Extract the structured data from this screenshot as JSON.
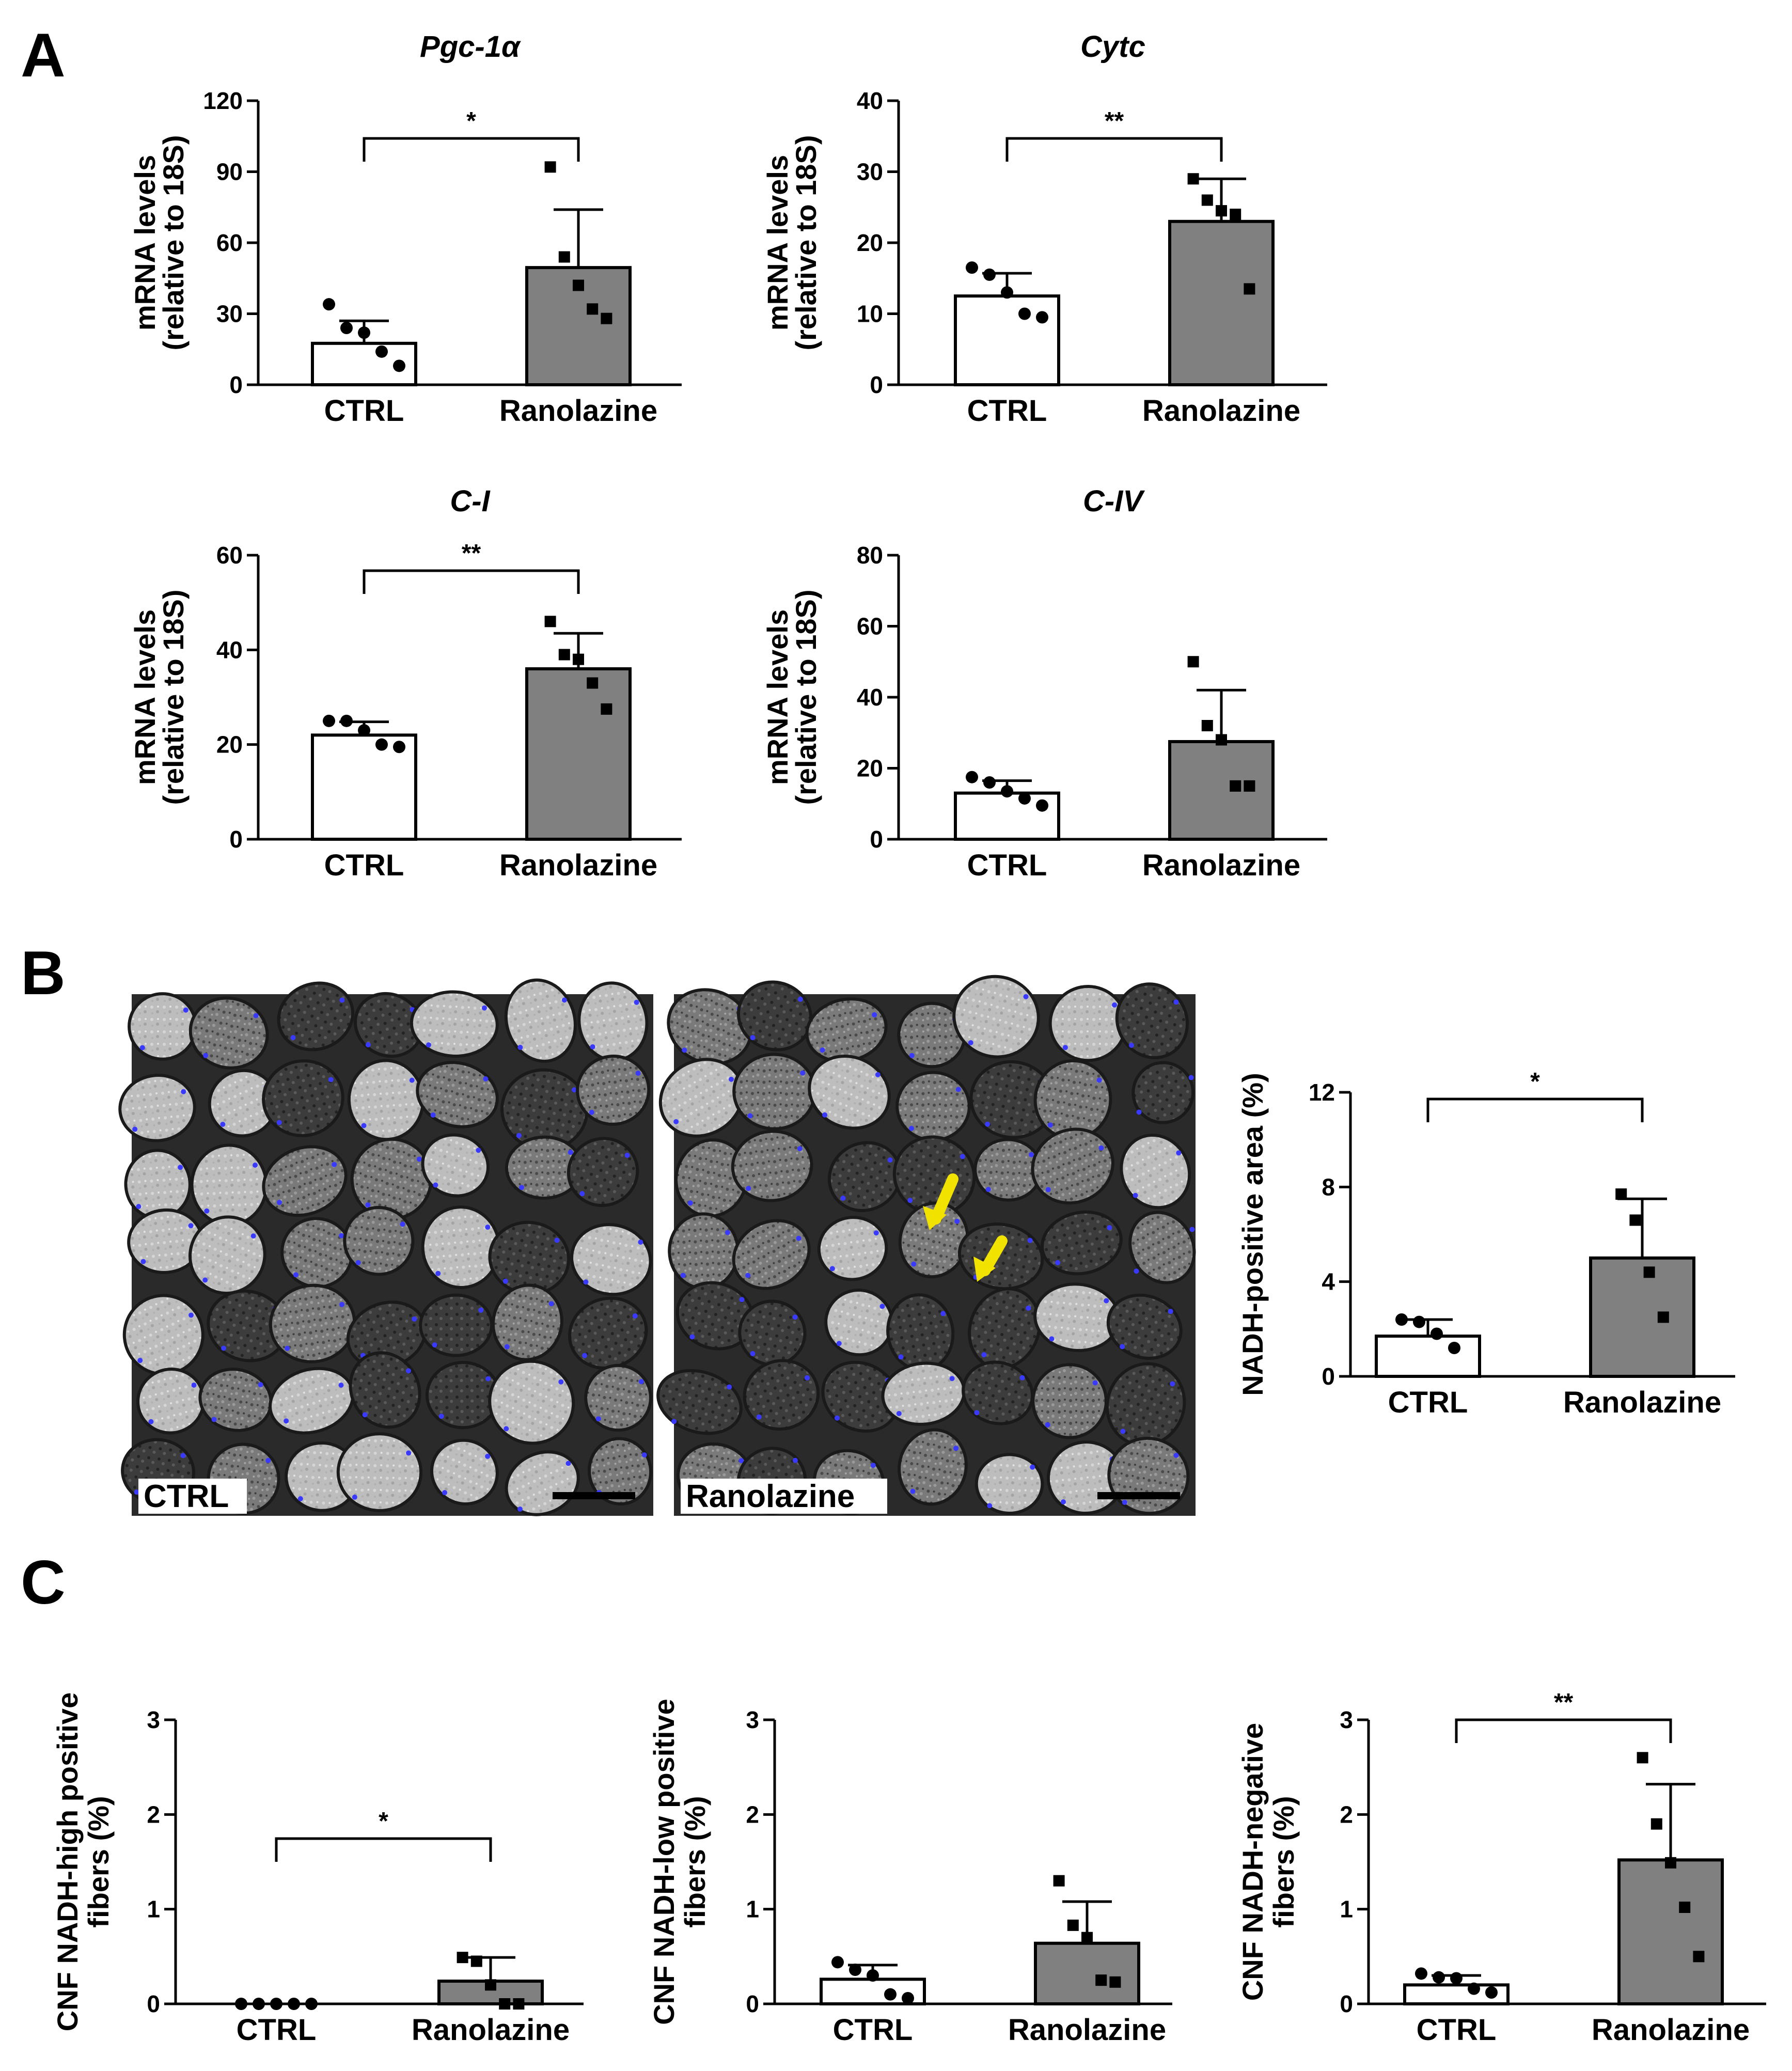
{
  "panel_labels": {
    "a": "A",
    "b": "B",
    "c": "C"
  },
  "colors": {
    "ctrl_bar": "#ffffff",
    "ranolazine_bar": "#808080",
    "axis": "#000000",
    "arrow": "#f2e200",
    "nuclei": "#3a3aff"
  },
  "micrographs": [
    {
      "label": "CTRL",
      "scale_bar": true,
      "arrows": 0
    },
    {
      "label": "Ranolazine",
      "scale_bar": true,
      "arrows": 2
    }
  ],
  "chart_data": [
    {
      "type": "bar",
      "title": "Pgc-1α",
      "ylabel": [
        "mRNA levels",
        "(relative to 18S)"
      ],
      "categories": [
        "CTRL",
        "Ranolazine"
      ],
      "values": [
        17.5,
        49.5
      ],
      "sd": [
        9.5,
        24.5
      ],
      "points": [
        [
          34,
          24,
          22,
          14,
          8
        ],
        [
          92,
          54,
          42,
          32,
          28
        ]
      ],
      "yticks": [
        "0",
        "30",
        "60",
        "90",
        "120"
      ],
      "ylim": [
        0,
        120
      ],
      "significance": "*"
    },
    {
      "type": "bar",
      "title": "Cytc",
      "ylabel": [
        "mRNA levels",
        "(relative to 18S)"
      ],
      "categories": [
        "CTRL",
        "Ranolazine"
      ],
      "values": [
        12.5,
        23
      ],
      "sd": [
        3.2,
        6
      ],
      "points": [
        [
          16.5,
          15.5,
          13,
          10,
          9.5
        ],
        [
          29,
          26,
          24.5,
          24,
          13.5
        ]
      ],
      "yticks": [
        "0",
        "10",
        "20",
        "30",
        "40"
      ],
      "ylim": [
        0,
        40
      ],
      "significance": "**"
    },
    {
      "type": "bar",
      "title": "C-I",
      "ylabel": [
        "mRNA levels",
        "(relative to 18S)"
      ],
      "categories": [
        "CTRL",
        "Ranolazine"
      ],
      "values": [
        22,
        36
      ],
      "sd": [
        2.8,
        7.5
      ],
      "points": [
        [
          25,
          25,
          23,
          20,
          19.5
        ],
        [
          46,
          39,
          38,
          33,
          27.5
        ]
      ],
      "yticks": [
        "0",
        "20",
        "40",
        "60"
      ],
      "ylim": [
        0,
        60
      ],
      "significance": "**"
    },
    {
      "type": "bar",
      "title": "C-IV",
      "ylabel": [
        "mRNA levels",
        "(relative to 18S)"
      ],
      "categories": [
        "CTRL",
        "Ranolazine"
      ],
      "values": [
        13,
        27.5
      ],
      "sd": [
        3.5,
        14.5
      ],
      "points": [
        [
          17.5,
          16,
          13.5,
          11.5,
          9.5
        ],
        [
          50,
          32,
          28,
          15,
          15
        ]
      ],
      "yticks": [
        "0",
        "20",
        "40",
        "60",
        "80"
      ],
      "ylim": [
        0,
        80
      ],
      "significance": ""
    },
    {
      "type": "bar",
      "title": "",
      "ylabel": [
        "NADH-positive area (%)"
      ],
      "categories": [
        "CTRL",
        "Ranolazine"
      ],
      "values": [
        1.7,
        5
      ],
      "sd": [
        0.7,
        2.5
      ],
      "points": [
        [
          2.4,
          2.3,
          1.8,
          1.2
        ],
        [
          7.7,
          6.6,
          4.4,
          2.5
        ]
      ],
      "yticks": [
        "0",
        "4",
        "8",
        "12"
      ],
      "ylim": [
        0,
        12
      ],
      "significance": "*"
    },
    {
      "type": "bar",
      "title": "",
      "ylabel": [
        "CNF NADH-high positive",
        "fibers (%)"
      ],
      "categories": [
        "CTRL",
        "Ranolazine"
      ],
      "values": [
        0,
        0.24
      ],
      "sd": [
        0,
        0.25
      ],
      "points": [
        [
          0,
          0,
          0,
          0,
          0
        ],
        [
          0.49,
          0.45,
          0.2,
          0,
          0
        ]
      ],
      "yticks": [
        "0",
        "1",
        "2",
        "3"
      ],
      "ylim": [
        0,
        3
      ],
      "significance": "*"
    },
    {
      "type": "bar",
      "title": "",
      "ylabel": [
        "CNF NADH-low positive",
        "fibers (%)"
      ],
      "categories": [
        "CTRL",
        "Ranolazine"
      ],
      "values": [
        0.26,
        0.64
      ],
      "sd": [
        0.15,
        0.44
      ],
      "points": [
        [
          0.44,
          0.36,
          0.3,
          0.1,
          0.06
        ],
        [
          1.3,
          0.83,
          0.7,
          0.25,
          0.23
        ]
      ],
      "yticks": [
        "0",
        "1",
        "2",
        "3"
      ],
      "ylim": [
        0,
        3
      ],
      "significance": ""
    },
    {
      "type": "bar",
      "title": "",
      "ylabel": [
        "CNF NADH-negative",
        "fibers (%)"
      ],
      "categories": [
        "CTRL",
        "Ranolazine"
      ],
      "values": [
        0.2,
        1.52
      ],
      "sd": [
        0.1,
        0.8
      ],
      "points": [
        [
          0.32,
          0.28,
          0.27,
          0.16,
          0.12
        ],
        [
          2.6,
          1.9,
          1.49,
          1.02,
          0.5
        ]
      ],
      "yticks": [
        "0",
        "1",
        "2",
        "3"
      ],
      "ylim": [
        0,
        3
      ],
      "significance": "**"
    }
  ]
}
